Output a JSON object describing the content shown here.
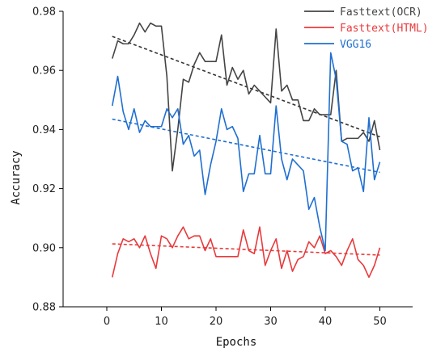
{
  "chart_data": {
    "type": "line",
    "xlabel": "Epochs",
    "ylabel": "Accuracy",
    "xlim": [
      -8,
      56
    ],
    "ylim": [
      0.88,
      0.98
    ],
    "xticks": [
      "0",
      "10",
      "20",
      "30",
      "40",
      "50"
    ],
    "yticks": [
      "0.88",
      "0.90",
      "0.92",
      "0.94",
      "0.96",
      "0.98"
    ],
    "legend_position": "top-right",
    "x": [
      1,
      2,
      3,
      4,
      5,
      6,
      7,
      8,
      9,
      10,
      11,
      12,
      13,
      14,
      15,
      16,
      17,
      18,
      19,
      20,
      21,
      22,
      23,
      24,
      25,
      26,
      27,
      28,
      29,
      30,
      31,
      32,
      33,
      34,
      35,
      36,
      37,
      38,
      39,
      40,
      41,
      42,
      43,
      44,
      45,
      46,
      47,
      48,
      49,
      50
    ],
    "series": [
      {
        "name": "Fasttext(OCR)",
        "color": "#444444",
        "trend_color": "#333333",
        "values": [
          0.964,
          0.97,
          0.969,
          0.969,
          0.972,
          0.976,
          0.973,
          0.976,
          0.975,
          0.975,
          0.958,
          0.926,
          0.94,
          0.957,
          0.956,
          0.962,
          0.966,
          0.963,
          0.963,
          0.963,
          0.972,
          0.955,
          0.961,
          0.957,
          0.96,
          0.952,
          0.955,
          0.953,
          0.951,
          0.949,
          0.974,
          0.953,
          0.955,
          0.95,
          0.95,
          0.943,
          0.943,
          0.947,
          0.945,
          0.945,
          0.945,
          0.96,
          0.936,
          0.937,
          0.937,
          0.937,
          0.939,
          0.936,
          0.943,
          0.933
        ],
        "trend": [
          0.9715,
          0.9375
        ]
      },
      {
        "name": "Fasttext(HTML)",
        "color": "#e8393b",
        "trend_color": "#e8393b",
        "values": [
          0.89,
          0.898,
          0.903,
          0.902,
          0.903,
          0.9,
          0.904,
          0.898,
          0.893,
          0.904,
          0.903,
          0.9,
          0.904,
          0.907,
          0.903,
          0.904,
          0.904,
          0.899,
          0.903,
          0.897,
          0.897,
          0.897,
          0.897,
          0.897,
          0.906,
          0.899,
          0.898,
          0.907,
          0.894,
          0.899,
          0.903,
          0.893,
          0.899,
          0.892,
          0.896,
          0.897,
          0.902,
          0.9,
          0.904,
          0.898,
          0.899,
          0.897,
          0.894,
          0.899,
          0.903,
          0.896,
          0.894,
          0.89,
          0.894,
          0.9
        ],
        "trend": [
          0.9013,
          0.8975
        ]
      },
      {
        "name": "VGG16",
        "color": "#1f6fd1",
        "trend_color": "#1f6fd1",
        "values": [
          0.948,
          0.958,
          0.946,
          0.94,
          0.947,
          0.939,
          0.943,
          0.941,
          0.941,
          0.941,
          0.947,
          0.944,
          0.947,
          0.935,
          0.938,
          0.931,
          0.933,
          0.918,
          0.928,
          0.936,
          0.947,
          0.94,
          0.941,
          0.937,
          0.919,
          0.925,
          0.925,
          0.938,
          0.925,
          0.925,
          0.948,
          0.93,
          0.923,
          0.93,
          0.928,
          0.926,
          0.913,
          0.917,
          0.907,
          0.899,
          0.966,
          0.957,
          0.936,
          0.935,
          0.926,
          0.927,
          0.919,
          0.944,
          0.923,
          0.929
        ],
        "trend": [
          0.9435,
          0.9255
        ]
      }
    ]
  }
}
